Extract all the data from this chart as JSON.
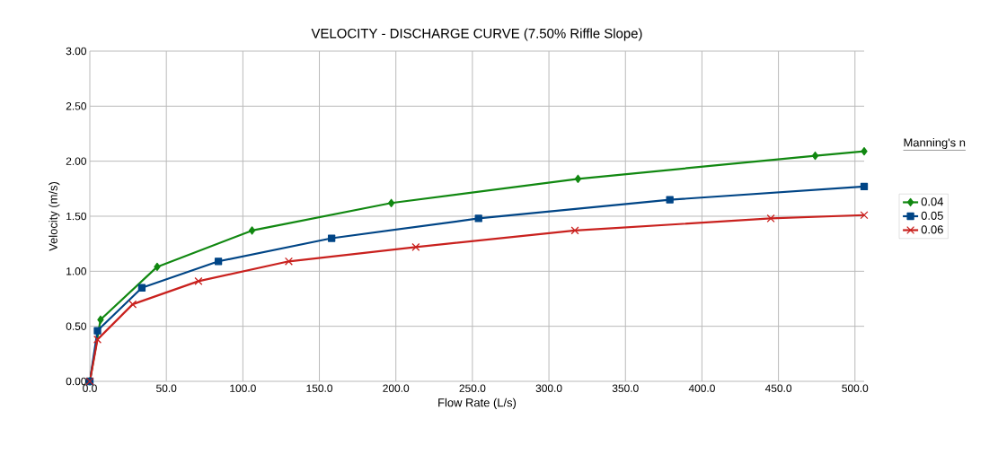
{
  "chart_data": {
    "type": "line",
    "title": "VELOCITY - DISCHARGE CURVE  (7.50% Riffle Slope)",
    "xlabel": "Flow Rate (L/s)",
    "ylabel": "Velocity (m/s)",
    "legend_title": "Manning's n",
    "xlim": [
      0,
      506
    ],
    "ylim": [
      0,
      3
    ],
    "xticks": [
      {
        "value": 0,
        "label": "0.0"
      },
      {
        "value": 50,
        "label": "50.0"
      },
      {
        "value": 100,
        "label": "100.0"
      },
      {
        "value": 150,
        "label": "150.0"
      },
      {
        "value": 200,
        "label": "200.0"
      },
      {
        "value": 250,
        "label": "250.0"
      },
      {
        "value": 300,
        "label": "300.0"
      },
      {
        "value": 350,
        "label": "350.0"
      },
      {
        "value": 400,
        "label": "400.0"
      },
      {
        "value": 450,
        "label": "450.0"
      },
      {
        "value": 500,
        "label": "500.0"
      }
    ],
    "yticks": [
      {
        "value": 0,
        "label": "0.00"
      },
      {
        "value": 0.5,
        "label": "0.50"
      },
      {
        "value": 1,
        "label": "1.00"
      },
      {
        "value": 1.5,
        "label": "1.50"
      },
      {
        "value": 2,
        "label": "2.00"
      },
      {
        "value": 2.5,
        "label": "2.50"
      },
      {
        "value": 3,
        "label": "3.00"
      }
    ],
    "grid": true,
    "legend": "right",
    "series": [
      {
        "name": "0.04",
        "color": "#118811",
        "marker": "diamond",
        "x": [
          0,
          7,
          44,
          106,
          197,
          319,
          474,
          506
        ],
        "values": [
          0,
          0.56,
          1.04,
          1.37,
          1.62,
          1.84,
          2.05,
          2.09
        ]
      },
      {
        "name": "0.05",
        "color": "#004586",
        "marker": "square",
        "x": [
          0,
          5,
          34,
          84,
          158,
          254,
          379,
          506
        ],
        "values": [
          0,
          0.46,
          0.85,
          1.09,
          1.3,
          1.48,
          1.65,
          1.77
        ]
      },
      {
        "name": "0.06",
        "color": "#c9211e",
        "marker": "cross",
        "x": [
          0,
          5,
          28,
          71,
          130,
          213,
          317,
          445,
          506
        ],
        "values": [
          0,
          0.38,
          0.7,
          0.91,
          1.09,
          1.22,
          1.37,
          1.48,
          1.51
        ]
      }
    ]
  }
}
